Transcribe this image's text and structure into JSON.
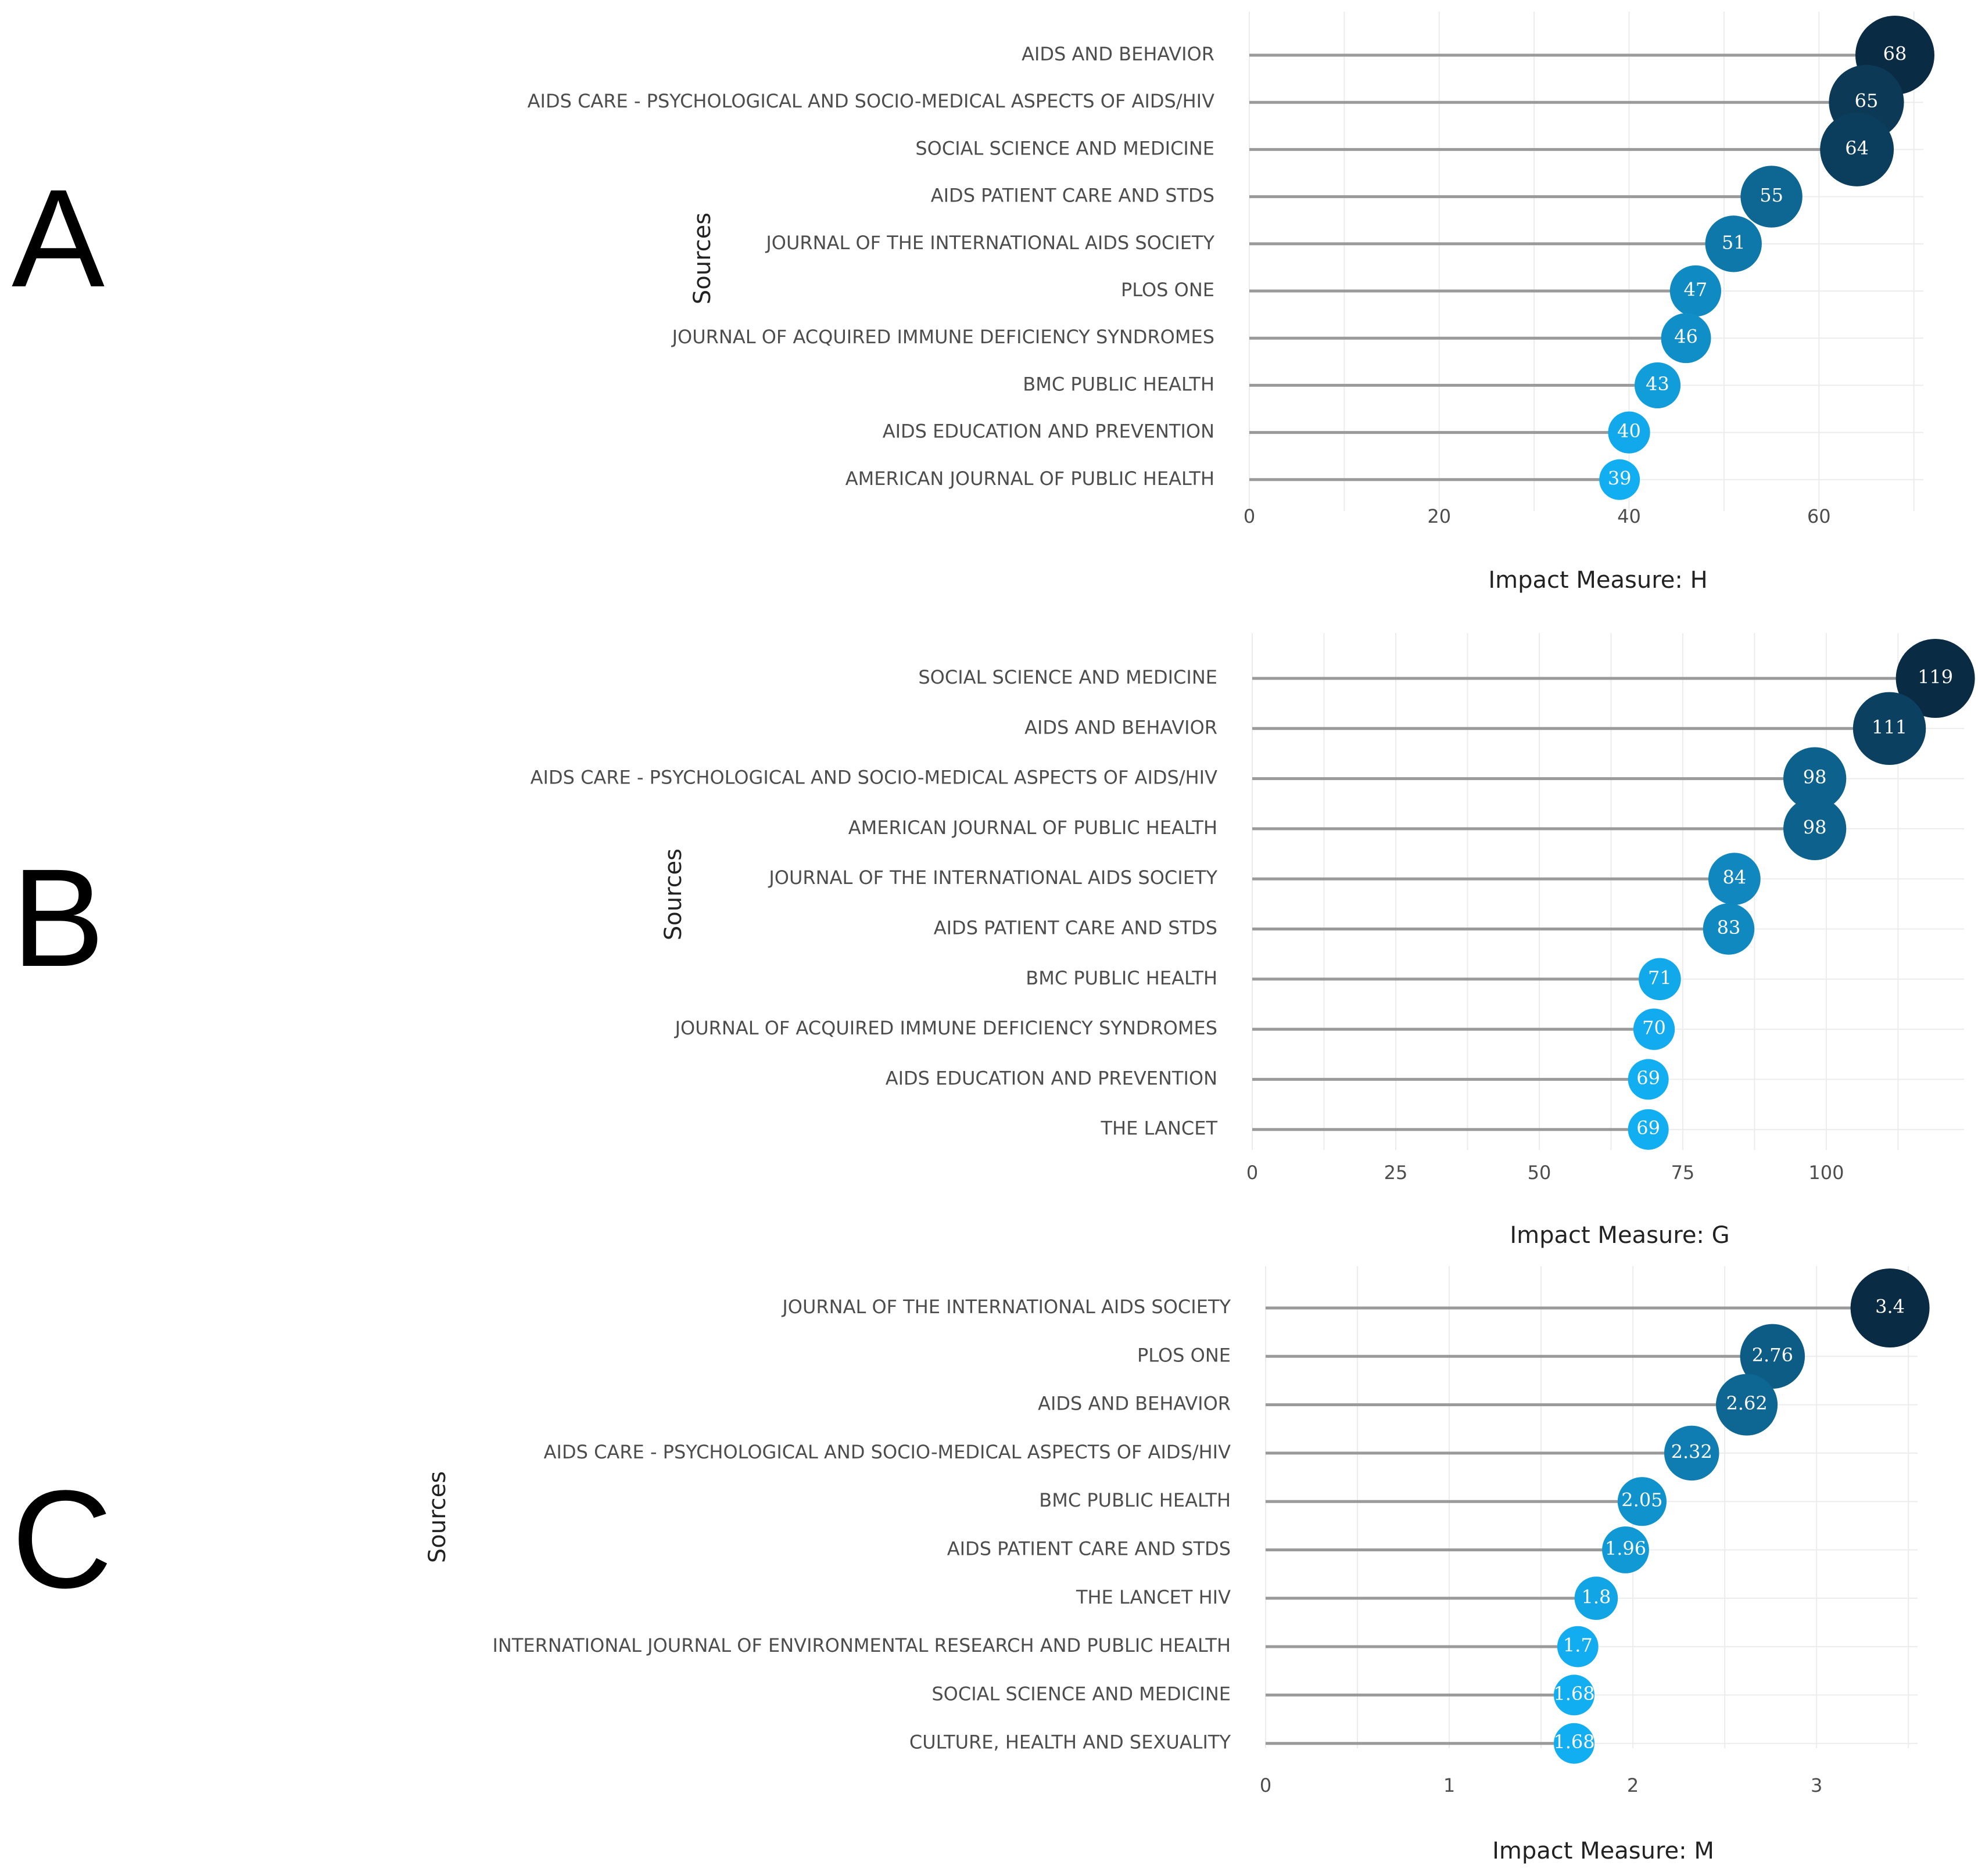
{
  "chart_data": [
    {
      "panel": "A",
      "type": "lollipop",
      "ylabel": "Sources",
      "xlabel": "Impact Measure: H",
      "ticks": [
        0,
        20,
        40,
        60
      ],
      "xlim": [
        0,
        71
      ],
      "categories": [
        "AIDS AND BEHAVIOR",
        "AIDS CARE - PSYCHOLOGICAL AND SOCIO-MEDICAL ASPECTS OF AIDS/HIV",
        "SOCIAL SCIENCE AND MEDICINE",
        "AIDS PATIENT CARE AND STDS",
        "JOURNAL OF THE INTERNATIONAL AIDS SOCIETY",
        "PLOS ONE",
        "JOURNAL OF ACQUIRED IMMUNE DEFICIENCY SYNDROMES",
        "BMC PUBLIC HEALTH",
        "AIDS EDUCATION AND PREVENTION",
        "AMERICAN JOURNAL OF PUBLIC HEALTH"
      ],
      "values": [
        68,
        65,
        64,
        55,
        51,
        47,
        46,
        43,
        40,
        39
      ],
      "labels": [
        "68",
        "65",
        "64",
        "55",
        "51",
        "47",
        "46",
        "43",
        "40",
        "39"
      ]
    },
    {
      "panel": "B",
      "type": "lollipop",
      "ylabel": "Sources",
      "xlabel": "Impact Measure: G",
      "ticks": [
        0,
        25,
        50,
        75,
        100
      ],
      "xlim": [
        0,
        124
      ],
      "categories": [
        "SOCIAL SCIENCE AND MEDICINE",
        "AIDS AND BEHAVIOR",
        "AIDS CARE - PSYCHOLOGICAL AND SOCIO-MEDICAL ASPECTS OF AIDS/HIV",
        "AMERICAN JOURNAL OF PUBLIC HEALTH",
        "JOURNAL OF THE INTERNATIONAL AIDS SOCIETY",
        "AIDS PATIENT CARE AND STDS",
        "BMC PUBLIC HEALTH",
        "JOURNAL OF ACQUIRED IMMUNE DEFICIENCY SYNDROMES",
        "AIDS EDUCATION AND PREVENTION",
        "THE LANCET"
      ],
      "values": [
        119,
        111,
        98,
        98,
        84,
        83,
        71,
        70,
        69,
        69
      ],
      "labels": [
        "119",
        "111",
        "98",
        "98",
        "84",
        "83",
        "71",
        "70",
        "69",
        "69"
      ]
    },
    {
      "panel": "C",
      "type": "lollipop",
      "ylabel": "Sources",
      "xlabel": "Impact Measure: M",
      "ticks": [
        0,
        1,
        2,
        3
      ],
      "xlim": [
        0,
        3.55
      ],
      "categories": [
        "JOURNAL OF THE INTERNATIONAL AIDS SOCIETY",
        "PLOS ONE",
        "AIDS AND BEHAVIOR",
        "AIDS CARE - PSYCHOLOGICAL AND SOCIO-MEDICAL ASPECTS OF AIDS/HIV",
        "BMC PUBLIC HEALTH",
        "AIDS PATIENT CARE AND STDS",
        "THE LANCET HIV",
        "INTERNATIONAL JOURNAL OF ENVIRONMENTAL RESEARCH AND PUBLIC HEALTH",
        "SOCIAL SCIENCE AND MEDICINE",
        "CULTURE, HEALTH AND SEXUALITY"
      ],
      "values": [
        3.4,
        2.76,
        2.62,
        2.32,
        2.05,
        1.96,
        1.8,
        1.7,
        1.68,
        1.68
      ],
      "labels": [
        "3.4",
        "2.76",
        "2.62",
        "2.32",
        "2.05",
        "1.96",
        "1.8",
        "1.7",
        "1.68",
        "1.68"
      ]
    }
  ],
  "colors": {
    "min": "#12aef2",
    "max": "#0a2b44",
    "stem": "#9a9a9a",
    "grid": "#ececec"
  }
}
